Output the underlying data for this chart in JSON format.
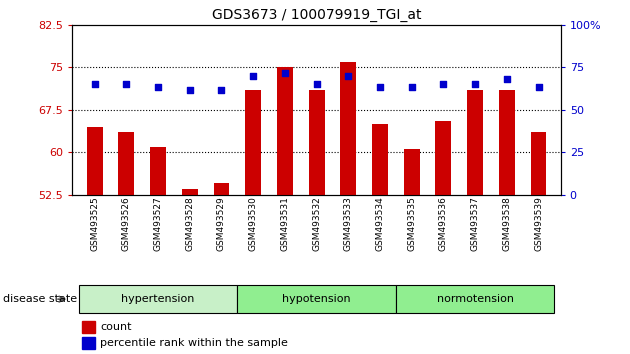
{
  "title": "GDS3673 / 100079919_TGI_at",
  "samples": [
    "GSM493525",
    "GSM493526",
    "GSM493527",
    "GSM493528",
    "GSM493529",
    "GSM493530",
    "GSM493531",
    "GSM493532",
    "GSM493533",
    "GSM493534",
    "GSM493535",
    "GSM493536",
    "GSM493537",
    "GSM493538",
    "GSM493539"
  ],
  "bar_values": [
    64.5,
    63.5,
    61.0,
    53.5,
    54.5,
    71.0,
    75.0,
    71.0,
    76.0,
    65.0,
    60.5,
    65.5,
    71.0,
    71.0,
    63.5
  ],
  "dot_values": [
    72.0,
    72.0,
    71.5,
    71.0,
    71.0,
    73.5,
    74.0,
    72.0,
    73.5,
    71.5,
    71.5,
    72.0,
    72.0,
    73.0,
    71.5
  ],
  "ylim": [
    52.5,
    82.5
  ],
  "yticks": [
    52.5,
    60.0,
    67.5,
    75.0,
    82.5
  ],
  "yticklabels": [
    "52.5",
    "60",
    "67.5",
    "75",
    "82.5"
  ],
  "right_yticks_pct": [
    0,
    25,
    50,
    75,
    100
  ],
  "right_yticklabels": [
    "0",
    "25",
    "50",
    "75",
    "100%"
  ],
  "bar_color": "#cc0000",
  "dot_color": "#0000cc",
  "group_ranges": [
    {
      "label": "hypertension",
      "start": 0,
      "end": 4,
      "color": "#c8f0c8"
    },
    {
      "label": "hypotension",
      "start": 5,
      "end": 9,
      "color": "#90ee90"
    },
    {
      "label": "normotension",
      "start": 10,
      "end": 14,
      "color": "#90ee90"
    }
  ],
  "disease_state_label": "disease state",
  "legend_count_label": "count",
  "legend_percentile_label": "percentile rank within the sample",
  "grid_lines": [
    60.0,
    67.5,
    75.0
  ],
  "bar_bottom": 52.5,
  "ymin": 52.5,
  "ymax": 82.5
}
